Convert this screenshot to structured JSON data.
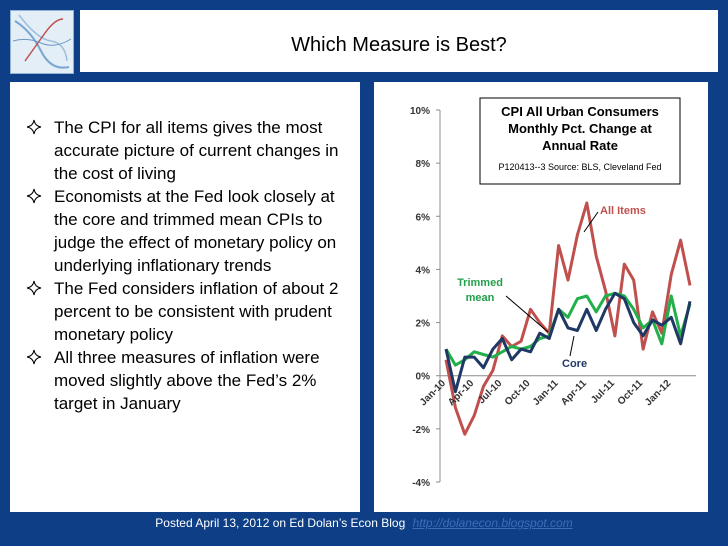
{
  "slide": {
    "title": "Which Measure is Best?",
    "bullets": [
      "The CPI for all items gives the most accurate picture of current changes in the cost of living",
      "Economists at the Fed look closely at the core and trimmed mean CPIs to judge the effect of monetary policy on underlying inflationary trends",
      "The Fed considers inflation of about 2 percent to be consistent with prudent monetary policy",
      "All three measures of inflation were moved slightly above the Fed’s 2% target in January"
    ],
    "footer_text": "Posted April 13, 2012 on Ed Dolan’s Econ Blog",
    "footer_link": "http://dolanecon.blogspot.com"
  },
  "colors": {
    "background": "#0e3f86",
    "all_items": "#c0504d",
    "trimmed_mean": "#22b04a",
    "core": "#1f3864",
    "label_green": "#22a04a",
    "label_red": "#c0504d",
    "label_navy": "#1f3864"
  },
  "chart_data": {
    "type": "line",
    "title_lines": [
      "CPI All Urban Consumers",
      "Monthly Pct. Change at",
      "Annual Rate"
    ],
    "source": "P120413--3 Source: BLS, Cleveland Fed",
    "ylim": [
      -4,
      10
    ],
    "y_ticks": [
      "10%",
      "8%",
      "6%",
      "4%",
      "2%",
      "0%",
      "-2%",
      "-4%"
    ],
    "x_labels": [
      "Jan-10",
      "Apr-10",
      "Jul-10",
      "Oct-10",
      "Jan-11",
      "Apr-11",
      "Jul-11",
      "Oct-11",
      "Jan-12"
    ],
    "series": [
      {
        "name": "All Items",
        "values": [
          0.6,
          -1.2,
          -2.2,
          -1.5,
          -0.4,
          0.2,
          1.5,
          1.1,
          1.3,
          2.5,
          2.0,
          1.6,
          4.9,
          3.6,
          5.3,
          6.5,
          4.5,
          3.2,
          1.5,
          4.2,
          3.6,
          1.0,
          2.4,
          1.6,
          3.8,
          5.1,
          3.4
        ]
      },
      {
        "name": "Trimmed mean",
        "values": [
          1.0,
          0.4,
          0.6,
          0.9,
          0.8,
          0.7,
          0.9,
          1.1,
          1.0,
          1.1,
          1.4,
          1.5,
          2.5,
          2.2,
          2.9,
          3.0,
          2.4,
          3.0,
          3.1,
          3.0,
          2.5,
          1.8,
          2.1,
          1.2,
          3.0,
          1.5,
          2.7
        ]
      },
      {
        "name": "Core",
        "values": [
          1.0,
          -0.6,
          0.7,
          0.7,
          0.3,
          1.0,
          1.4,
          0.6,
          1.0,
          0.9,
          1.6,
          1.4,
          2.5,
          1.8,
          1.7,
          2.5,
          1.7,
          2.5,
          3.1,
          2.9,
          2.0,
          1.5,
          2.1,
          1.9,
          2.2,
          1.2,
          2.8
        ]
      }
    ],
    "annotations": {
      "all_items": "All Items",
      "trimmed": [
        "Trimmed",
        "mean"
      ],
      "core": "Core"
    }
  }
}
